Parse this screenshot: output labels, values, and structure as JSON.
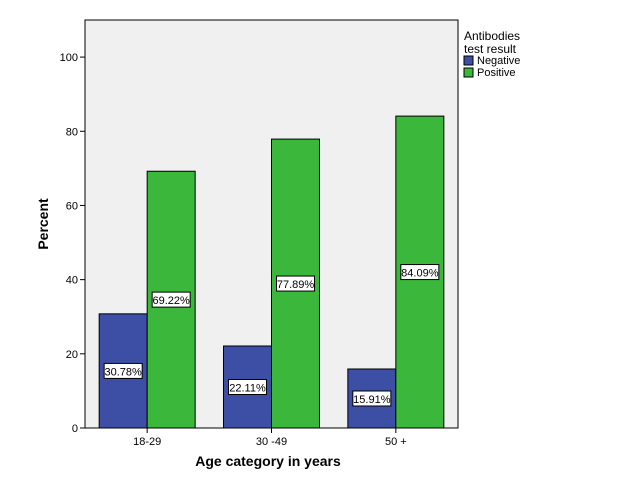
{
  "chart_data": {
    "type": "bar",
    "categories": [
      "18-29",
      "30 -49",
      "50 +"
    ],
    "series": [
      {
        "name": "Negative",
        "values": [
          30.78,
          22.11,
          15.91
        ],
        "labels": [
          "30.78%",
          "22.11%",
          "15.91%"
        ],
        "color": "#3C4FA5"
      },
      {
        "name": "Positive",
        "values": [
          69.22,
          77.89,
          84.09
        ],
        "labels": [
          "69.22%",
          "77.89%",
          "84.09%"
        ],
        "color": "#3BB73B"
      }
    ],
    "xlabel": "Age category in years",
    "ylabel": "Percent",
    "ylim": [
      0,
      110
    ],
    "yticks": [
      0,
      20,
      40,
      60,
      80,
      100
    ],
    "grid": false,
    "legend": {
      "title": [
        "Antibodies",
        "test result"
      ],
      "placement": "right"
    },
    "plot_background": "#F0F0F0"
  }
}
